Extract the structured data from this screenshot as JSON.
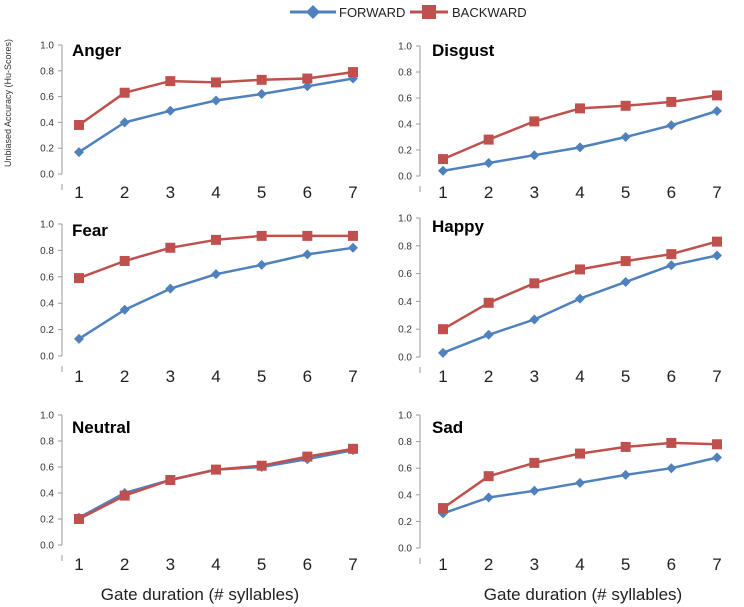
{
  "legend": [
    {
      "name": "FORWARD",
      "color": "#4f81bd",
      "marker": "diamond"
    },
    {
      "name": "BACKWARD",
      "color": "#c0504d",
      "marker": "square"
    }
  ],
  "ylabel": "Unbiased Accuracy (Hu-Scores)",
  "xlabel_left": "Gate duration (# syllables)",
  "xlabel_right": "Gate duration (# syllables)",
  "chart_data": [
    {
      "type": "line",
      "title": "Anger",
      "categories": [
        "1",
        "2",
        "3",
        "4",
        "5",
        "6",
        "7"
      ],
      "ylim": [
        0,
        1.0
      ],
      "yticks": [
        "0.0",
        "0.2",
        "0.4",
        "0.6",
        "0.8",
        "1.0"
      ],
      "xlabel": "",
      "ylabel": "Unbiased Accuracy (Hu-Scores)",
      "series": [
        {
          "name": "FORWARD",
          "values": [
            0.17,
            0.4,
            0.49,
            0.57,
            0.62,
            0.68,
            0.74
          ]
        },
        {
          "name": "BACKWARD",
          "values": [
            0.38,
            0.63,
            0.72,
            0.71,
            0.73,
            0.74,
            0.79
          ]
        }
      ]
    },
    {
      "type": "line",
      "title": "Disgust",
      "categories": [
        "1",
        "2",
        "3",
        "4",
        "5",
        "6",
        "7"
      ],
      "ylim": [
        0,
        1.0
      ],
      "yticks": [
        "0.0",
        "0.2",
        "0.4",
        "0.6",
        "0.8",
        "1.0"
      ],
      "xlabel": "",
      "ylabel": "",
      "series": [
        {
          "name": "FORWARD",
          "values": [
            0.04,
            0.1,
            0.16,
            0.22,
            0.3,
            0.39,
            0.5
          ]
        },
        {
          "name": "BACKWARD",
          "values": [
            0.13,
            0.28,
            0.42,
            0.52,
            0.54,
            0.57,
            0.62
          ]
        }
      ]
    },
    {
      "type": "line",
      "title": "Fear",
      "categories": [
        "1",
        "2",
        "3",
        "4",
        "5",
        "6",
        "7"
      ],
      "ylim": [
        0,
        1.0
      ],
      "yticks": [
        "0.0",
        "0.2",
        "0.4",
        "0.6",
        "0.8",
        "1.0"
      ],
      "xlabel": "",
      "ylabel": "",
      "series": [
        {
          "name": "FORWARD",
          "values": [
            0.13,
            0.35,
            0.51,
            0.62,
            0.69,
            0.77,
            0.82
          ]
        },
        {
          "name": "BACKWARD",
          "values": [
            0.59,
            0.72,
            0.82,
            0.88,
            0.91,
            0.91,
            0.91
          ]
        }
      ]
    },
    {
      "type": "line",
      "title": "Happy",
      "categories": [
        "1",
        "2",
        "3",
        "4",
        "5",
        "6",
        "7"
      ],
      "ylim": [
        0,
        1.0
      ],
      "yticks": [
        "0.0",
        "0.2",
        "0.4",
        "0.6",
        "0.8",
        "1.0"
      ],
      "xlabel": "",
      "ylabel": "",
      "series": [
        {
          "name": "FORWARD",
          "values": [
            0.03,
            0.16,
            0.27,
            0.42,
            0.54,
            0.66,
            0.73
          ]
        },
        {
          "name": "BACKWARD",
          "values": [
            0.2,
            0.39,
            0.53,
            0.63,
            0.69,
            0.74,
            0.83
          ]
        }
      ]
    },
    {
      "type": "line",
      "title": "Neutral",
      "categories": [
        "1",
        "2",
        "3",
        "4",
        "5",
        "6",
        "7"
      ],
      "ylim": [
        0,
        1.0
      ],
      "yticks": [
        "0.0",
        "0.2",
        "0.4",
        "0.6",
        "0.8",
        "1.0"
      ],
      "xlabel": "Gate duration (# syllables)",
      "ylabel": "",
      "series": [
        {
          "name": "FORWARD",
          "values": [
            0.21,
            0.4,
            0.5,
            0.58,
            0.6,
            0.66,
            0.73
          ]
        },
        {
          "name": "BACKWARD",
          "values": [
            0.2,
            0.38,
            0.5,
            0.58,
            0.61,
            0.68,
            0.74
          ]
        }
      ]
    },
    {
      "type": "line",
      "title": "Sad",
      "categories": [
        "1",
        "2",
        "3",
        "4",
        "5",
        "6",
        "7"
      ],
      "ylim": [
        0,
        1.0
      ],
      "yticks": [
        "0.0",
        "0.2",
        "0.4",
        "0.6",
        "0.8",
        "1.0"
      ],
      "xlabel": "Gate duration (# syllables)",
      "ylabel": "",
      "series": [
        {
          "name": "FORWARD",
          "values": [
            0.26,
            0.38,
            0.43,
            0.49,
            0.55,
            0.6,
            0.68
          ]
        },
        {
          "name": "BACKWARD",
          "values": [
            0.3,
            0.54,
            0.64,
            0.71,
            0.76,
            0.79,
            0.78
          ]
        }
      ]
    }
  ]
}
